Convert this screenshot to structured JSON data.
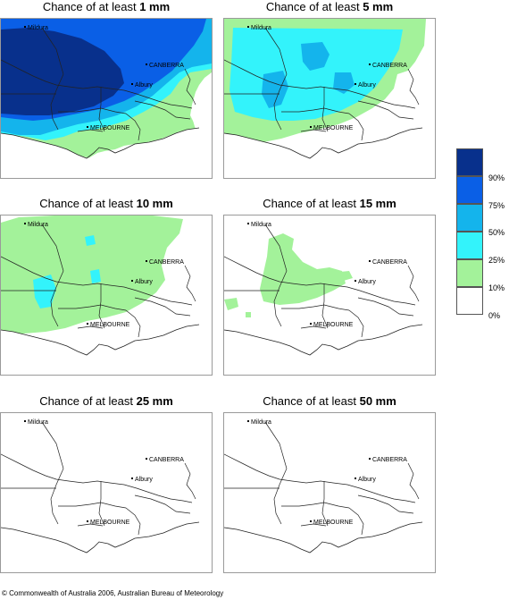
{
  "panels": [
    {
      "prefix": "Chance of at least ",
      "amount": "1 mm",
      "level": 6
    },
    {
      "prefix": "Chance of at least ",
      "amount": "5 mm",
      "level": 4
    },
    {
      "prefix": "Chance of at least ",
      "amount": "10 mm",
      "level": 2
    },
    {
      "prefix": "Chance of at least ",
      "amount": "15 mm",
      "level": 1
    },
    {
      "prefix": "Chance of at least ",
      "amount": "25 mm",
      "level": 0
    },
    {
      "prefix": "Chance of at least ",
      "amount": "50 mm",
      "level": 0
    }
  ],
  "places": {
    "mildura": "Mildura",
    "canberra": "CANBERRA",
    "albury": "Albury",
    "melbourne": "MELBOURNE"
  },
  "legend": {
    "labels": [
      "90%",
      "75%",
      "50%",
      "25%",
      "10%",
      "0%"
    ],
    "colors": [
      "#08308c",
      "#0a5fe6",
      "#14b4ec",
      "#33f3fb",
      "#a3f29a",
      "#ffffff"
    ]
  },
  "copyright": "© Commonwealth of Australia 2006, Australian Bureau of Meteorology"
}
